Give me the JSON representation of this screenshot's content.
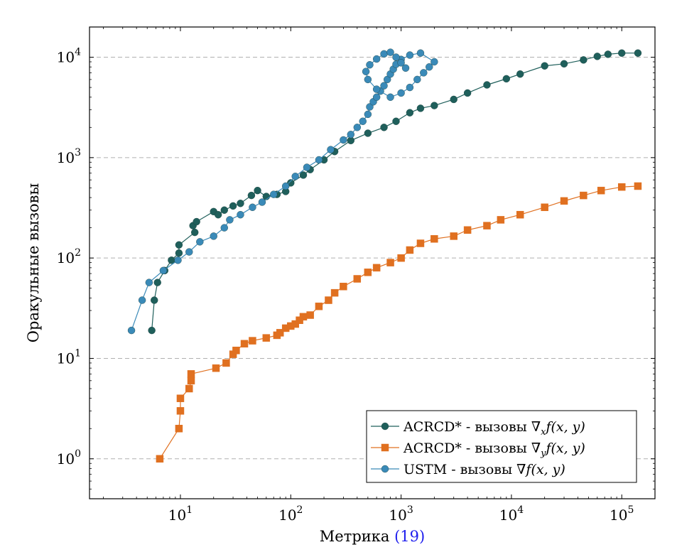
{
  "chart_data": {
    "type": "line",
    "title": "",
    "xlabel": "Метрика",
    "xlabel_ref": "(19)",
    "ylabel": "Оракульные вызовы",
    "x_scale": "log",
    "y_scale": "log",
    "xlim": [
      1.5,
      200000
    ],
    "ylim": [
      0.4,
      20000
    ],
    "x_ticks": [
      {
        "value": 10,
        "base": "10",
        "exp": "1"
      },
      {
        "value": 100,
        "base": "10",
        "exp": "2"
      },
      {
        "value": 1000,
        "base": "10",
        "exp": "3"
      },
      {
        "value": 10000,
        "base": "10",
        "exp": "4"
      },
      {
        "value": 100000,
        "base": "10",
        "exp": "5"
      }
    ],
    "y_ticks": [
      {
        "value": 1,
        "base": "10",
        "exp": "0"
      },
      {
        "value": 10,
        "base": "10",
        "exp": "1"
      },
      {
        "value": 100,
        "base": "10",
        "exp": "2"
      },
      {
        "value": 1000,
        "base": "10",
        "exp": "3"
      },
      {
        "value": 10000,
        "base": "10",
        "exp": "4"
      }
    ],
    "grid": "horizontal-dashed",
    "legend_position": "bottom-right",
    "series": [
      {
        "name": "ACRCD* - вызовы ∇ₓf(x, y)",
        "legend_main": "ACRCD* - вызовы ∇",
        "legend_sub": "x",
        "legend_tail": "f(x, y)",
        "color": "#1f5f5b",
        "marker": "circle",
        "x": [
          5.5,
          5.8,
          6.2,
          7.2,
          8.3,
          9.7,
          9.7,
          13.5,
          13,
          14,
          20,
          22,
          25,
          30,
          35,
          44,
          50,
          60,
          75,
          90,
          100,
          130,
          150,
          200,
          250,
          350,
          500,
          700,
          900,
          1200,
          1500,
          2000,
          3000,
          4000,
          6000,
          9000,
          12000,
          20000,
          30000,
          45000,
          60000,
          75000,
          100000,
          140000
        ],
        "y": [
          19,
          38,
          57,
          75,
          95,
          112,
          135,
          180,
          210,
          230,
          290,
          270,
          300,
          330,
          350,
          420,
          470,
          410,
          430,
          460,
          560,
          670,
          760,
          950,
          1150,
          1480,
          1750,
          2000,
          2300,
          2800,
          3100,
          3300,
          3800,
          4400,
          5300,
          6100,
          6800,
          8200,
          8600,
          9400,
          10200,
          10700,
          11000,
          11000
        ]
      },
      {
        "name": "ACRCD* - вызовы ∇ᵧf(x, y)",
        "legend_main": "ACRCD* - вызовы ∇",
        "legend_sub": "y",
        "legend_tail": "f(x, y)",
        "color": "#e07020",
        "marker": "square",
        "x": [
          6.5,
          9.7,
          10,
          10,
          12,
          12.5,
          12.5,
          21,
          26,
          30,
          32,
          38,
          45,
          60,
          75,
          80,
          90,
          100,
          110,
          120,
          130,
          150,
          180,
          220,
          250,
          300,
          400,
          500,
          600,
          800,
          1000,
          1200,
          1500,
          2000,
          3000,
          4000,
          6000,
          8000,
          12000,
          20000,
          30000,
          45000,
          65000,
          100000,
          140000
        ],
        "y": [
          1,
          2,
          3,
          4,
          5,
          6,
          7,
          8,
          9,
          11,
          12,
          14,
          15,
          16,
          17,
          18,
          20,
          21,
          22,
          24,
          26,
          27,
          33,
          38,
          45,
          52,
          62,
          72,
          80,
          90,
          100,
          120,
          140,
          155,
          165,
          190,
          210,
          240,
          270,
          320,
          370,
          420,
          470,
          510,
          520
        ]
      },
      {
        "name": "USTM - вызовы ∇f(x, y)",
        "legend_main": "USTM - вызовы ∇",
        "legend_sub": "",
        "legend_tail": "f(x, y)",
        "color": "#3a8ab8",
        "marker": "circle",
        "x": [
          3.6,
          4.5,
          5.2,
          7,
          9.5,
          12,
          15,
          20,
          25,
          28,
          35,
          45,
          55,
          70,
          90,
          110,
          140,
          180,
          230,
          300,
          350,
          400,
          450,
          500,
          520,
          560,
          600,
          650,
          700,
          750,
          800,
          850,
          900,
          1000,
          1200,
          1500,
          2000,
          1800,
          1600,
          1400,
          1200,
          1000,
          800,
          600,
          500,
          480,
          520,
          600,
          700,
          800,
          900,
          1000,
          1100
        ],
        "y": [
          19,
          38,
          57,
          75,
          95,
          115,
          145,
          165,
          200,
          240,
          270,
          320,
          360,
          430,
          520,
          650,
          800,
          950,
          1200,
          1500,
          1700,
          2000,
          2300,
          2700,
          3200,
          3600,
          4000,
          4600,
          5200,
          6000,
          6800,
          7600,
          8500,
          9500,
          10500,
          11000,
          9000,
          8000,
          7000,
          6000,
          5000,
          4400,
          4000,
          4800,
          6000,
          7200,
          8400,
          9600,
          10800,
          11200,
          10000,
          8800,
          7800
        ]
      }
    ]
  }
}
